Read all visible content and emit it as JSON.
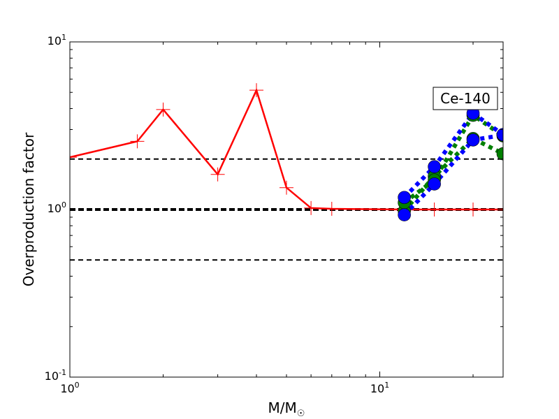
{
  "chart_data": {
    "type": "line",
    "xscale": "log",
    "yscale": "log",
    "xlim": [
      1,
      25
    ],
    "ylim": [
      0.1,
      10
    ],
    "xlabel": "M/M",
    "xlabel_sub": "☉",
    "ylabel": "Overproduction factor",
    "annotation": "Ce-140",
    "x_ticks": [
      {
        "base": "10",
        "exp": "0",
        "value": 1
      },
      {
        "base": "10",
        "exp": "1",
        "value": 10
      }
    ],
    "y_ticks": [
      {
        "base": "10",
        "exp": "-1",
        "value": 0.1
      },
      {
        "base": "10",
        "exp": "0",
        "value": 1
      },
      {
        "base": "10",
        "exp": "1",
        "value": 10
      }
    ],
    "reference_lines": [
      {
        "y": 2.0,
        "style": "dashed",
        "color": "#000000",
        "weight": "thin"
      },
      {
        "y": 1.0,
        "style": "dashed",
        "color": "#000000",
        "weight": "thick"
      },
      {
        "y": 0.5,
        "style": "dashed",
        "color": "#000000",
        "weight": "thin"
      }
    ],
    "series": [
      {
        "color": "#ff0000",
        "line": "solid",
        "marker": "plus",
        "x": [
          1.0,
          1.65,
          2.0,
          3.0,
          4.0,
          5.0,
          6.0,
          7.0,
          12.0,
          15.0,
          20.0,
          25.0
        ],
        "y": [
          2.05,
          2.55,
          3.95,
          1.62,
          5.15,
          1.35,
          1.02,
          1.01,
          1.0,
          1.0,
          1.0,
          1.0
        ]
      },
      {
        "color": "#008000",
        "line": "dotted",
        "marker": "circle",
        "x": [
          12.0,
          15.0,
          20.0,
          25.0
        ],
        "y": [
          0.98,
          1.58,
          2.65,
          2.15
        ]
      },
      {
        "color": "#008000",
        "line": "dotted",
        "marker": "circle",
        "x": [
          12.0,
          15.0,
          20.0,
          25.0
        ],
        "y": [
          1.1,
          1.5,
          3.65,
          2.75
        ]
      },
      {
        "color": "#0000ff",
        "line": "dotted",
        "marker": "circle",
        "x": [
          12.0,
          15.0,
          20.0,
          25.0
        ],
        "y": [
          0.93,
          1.42,
          2.6,
          2.78
        ]
      },
      {
        "color": "#0000ff",
        "line": "dotted",
        "marker": "circle",
        "x": [
          12.0,
          15.0,
          20.0,
          25.0
        ],
        "y": [
          1.18,
          1.8,
          3.75,
          2.8
        ]
      }
    ]
  }
}
